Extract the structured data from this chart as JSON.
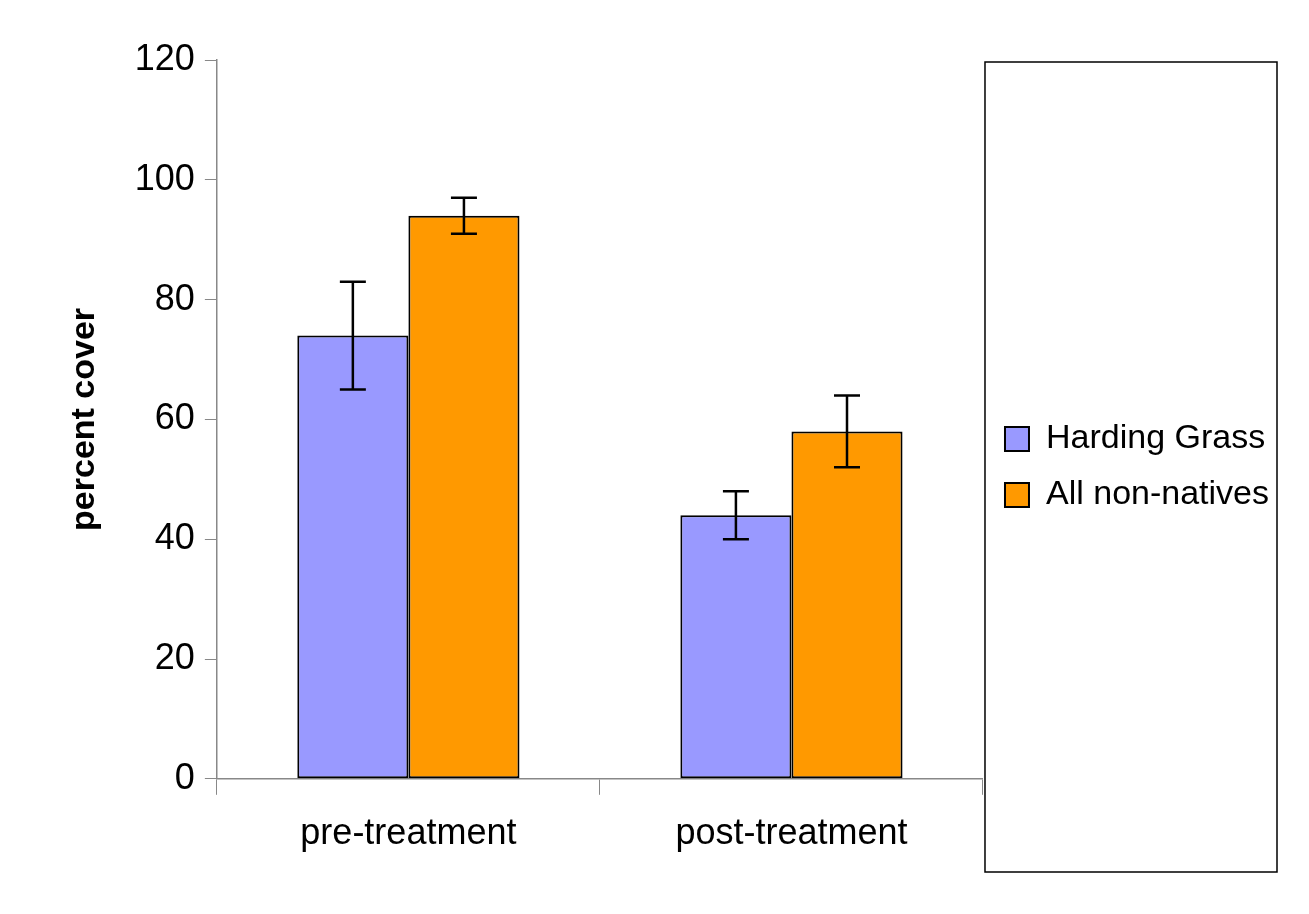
{
  "chart_data": {
    "type": "bar",
    "ylabel": "percent cover",
    "categories": [
      "pre-treatment",
      "post-treatment"
    ],
    "series": [
      {
        "name": "Harding Grass",
        "color": "#9999ff",
        "values": [
          74,
          44
        ],
        "errors": [
          9,
          4
        ]
      },
      {
        "name": "All non-natives",
        "color": "#ff9900",
        "values": [
          94,
          58
        ],
        "errors": [
          3,
          6
        ]
      }
    ],
    "ylim": [
      0,
      120
    ],
    "yticks": [
      0,
      20,
      40,
      60,
      80,
      100,
      120
    ],
    "legend": "right"
  }
}
